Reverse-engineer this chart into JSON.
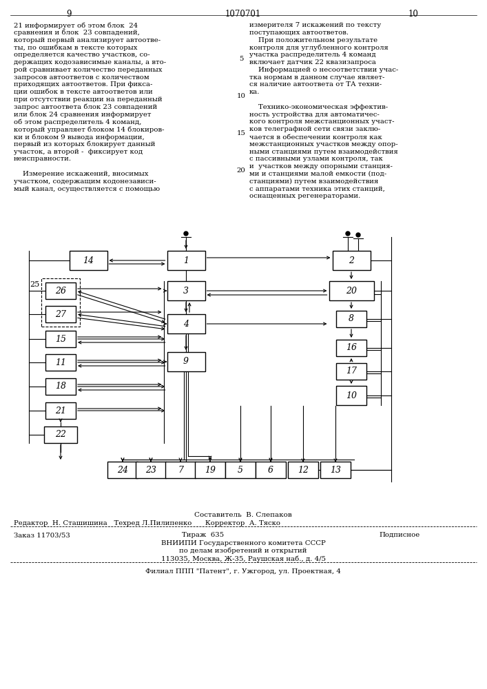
{
  "page_number_left": "9",
  "patent_number": "1070701",
  "page_number_right": "10",
  "text_left": [
    "21 информирует об этом блок  24",
    "сравнения и блок  23 совпадений,",
    "который первый анализирует автоотве-",
    "ты, по ошибкам в тексте которых",
    "определяется качество участков, со-",
    "держащих кодозависимые каналы, а вто-",
    "рой сравнивает количество переданных",
    "запросов автоответов с количеством",
    "приходящих автоответов. При фикса-",
    "ции ошибок в тексте автоответов или",
    "при отсутствии реакции на переданный",
    "запрос автоответа блок 23 совпадений",
    "или блок 24 сравнения информирует",
    "об этом распределитель 4 команд,",
    "который управляет блоком 14 блокиров-",
    "ки и блоком 9 вывода информации,",
    "первый из которых блокирует данный",
    "участок, а второй -  фиксирует код",
    "неисправности.",
    "",
    "    Измерение искажений, вносимых",
    "участком, содержащим кодонезависи-",
    "мый канал, осуществляется с помощью"
  ],
  "line_numbers_left": {
    "4": "5",
    "9": "10",
    "14": "15",
    "19": "20"
  },
  "text_right": [
    "измерителя 7 искажений по тексту",
    "поступающих автоответов.",
    "    При положительном результате",
    "контроля для углубленного контроля",
    "участка распределитель 4 команд",
    "включает датчик 22 квазизапроса",
    "    Информацией о несоответствии учас-",
    "тка нормам в данном случае являет-",
    "ся наличие автоответа от ТА техни-",
    "ка.",
    "",
    "    Технико-экономическая эффектив-",
    "ность устройства для автоматичес-",
    "кого контроля межстанционных участ-",
    "ков телеграфной сети связи заклю-",
    "чается в обеспечении контроля как",
    "межстанционных участков между опор-",
    "ными станциями путем взаимодействия",
    "с пассивными узлами контроля, так",
    "и  участков между опорными станция-",
    "ми и станциями малой емкости (под-",
    "станциями) путем взаимодействия",
    "с аппаратами техника этих станций,",
    "оснащенных регенераторами."
  ],
  "footer_sestavitel": "Составитель  В. Слепаков",
  "footer_redaktor": "Редактор  Н. Сташишина   Техред Л.Пилипенко      Корректор  А. Тяско",
  "footer_zakaz": "Заказ 11703/53",
  "footer_tirazh": "Тираж  635",
  "footer_podpisnoe": "Подписное",
  "footer_vniipи": "ВНИИПИ Государственного комитета СССР",
  "footer_dela": "по делам изобретений и открытий",
  "footer_addr": "113035, Москва, Ж-35, Раушская наб., д. 4/5",
  "footer_filial": "Филиал ППП \"Патент\", г. Ужгород, ул. Проектная, 4",
  "bg_color": "#ffffff"
}
